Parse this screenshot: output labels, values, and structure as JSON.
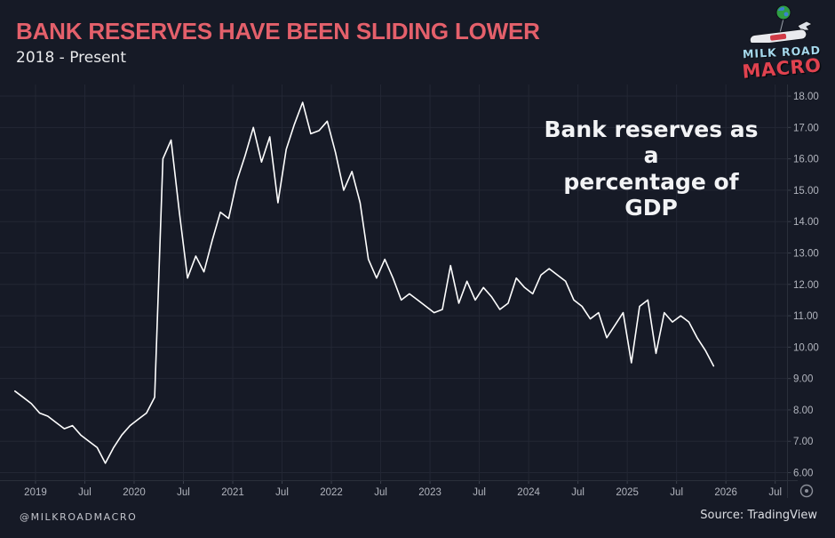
{
  "header": {
    "title": "BANK RESERVES HAVE BEEN SLIDING LOWER",
    "subtitle": "2018 - Present"
  },
  "logo": {
    "line1": "MILK ROAD",
    "line2": "MACRO",
    "colors": {
      "line1": "#a5d8ec",
      "line2": "#e0424f",
      "globe": "#2f9e44",
      "globe_land": "#3b82d0"
    }
  },
  "annotation": {
    "line1": "Bank reserves as a",
    "line2": "percentage of GDP"
  },
  "footer": {
    "handle": "@MILKROADMACRO",
    "source": "Source: TradingView"
  },
  "icons": {
    "bottom_right": "gear-icon (price scale settings)",
    "logo_top": "globe-balloon-icon",
    "logo_side": "bird-icon"
  },
  "colors": {
    "background": "#161a26",
    "grid": "#232734",
    "axis_line": "#2a2f3a",
    "axis_tick": "#3a3f4b",
    "axis_text": "#b2b5be",
    "series_line": "#ffffff",
    "title": "#e4606b",
    "annotation_text": "#f2f3f5"
  },
  "chart_data": {
    "type": "line",
    "title": "Bank reserves as a percentage of GDP",
    "series_name": "Bank reserves as a percentage of GDP",
    "unit": "percent of GDP",
    "grid": true,
    "legend_position": "none",
    "line_color": "#ffffff",
    "xlim": [
      2018.64,
      2026.62
    ],
    "ylim": [
      5.76,
      18.37
    ],
    "y_ticks": [
      "18.00",
      "17.00",
      "16.00",
      "15.00",
      "14.00",
      "13.00",
      "12.00",
      "11.00",
      "10.00",
      "9.00",
      "8.00",
      "7.00",
      "6.00"
    ],
    "x_ticks": [
      {
        "label": "2019",
        "t": 2019.0
      },
      {
        "label": "Jul",
        "t": 2019.5
      },
      {
        "label": "2020",
        "t": 2020.0
      },
      {
        "label": "Jul",
        "t": 2020.5
      },
      {
        "label": "2021",
        "t": 2021.0
      },
      {
        "label": "Jul",
        "t": 2021.5
      },
      {
        "label": "2022",
        "t": 2022.0
      },
      {
        "label": "Jul",
        "t": 2022.5
      },
      {
        "label": "2023",
        "t": 2023.0
      },
      {
        "label": "Jul",
        "t": 2023.5
      },
      {
        "label": "2024",
        "t": 2024.0
      },
      {
        "label": "Jul",
        "t": 2024.5
      },
      {
        "label": "2025",
        "t": 2025.0
      },
      {
        "label": "Jul",
        "t": 2025.5
      },
      {
        "label": "2026",
        "t": 2026.0
      },
      {
        "label": "Jul",
        "t": 2026.5
      }
    ],
    "x": [
      "2018-10",
      "2018-11",
      "2018-12",
      "2019-01",
      "2019-02",
      "2019-03",
      "2019-04",
      "2019-05",
      "2019-06",
      "2019-07",
      "2019-08",
      "2019-09",
      "2019-10",
      "2019-11",
      "2019-12",
      "2020-01",
      "2020-02",
      "2020-03",
      "2020-04",
      "2020-05",
      "2020-06",
      "2020-07",
      "2020-08",
      "2020-09",
      "2020-10",
      "2020-11",
      "2020-12",
      "2021-01",
      "2021-02",
      "2021-03",
      "2021-04",
      "2021-05",
      "2021-06",
      "2021-07",
      "2021-08",
      "2021-09",
      "2021-10",
      "2021-11",
      "2021-12",
      "2022-01",
      "2022-02",
      "2022-03",
      "2022-04",
      "2022-05",
      "2022-06",
      "2022-07",
      "2022-08",
      "2022-09",
      "2022-10",
      "2022-11",
      "2022-12",
      "2023-01",
      "2023-02",
      "2023-03",
      "2023-04",
      "2023-05",
      "2023-06",
      "2023-07",
      "2023-08",
      "2023-09",
      "2023-10",
      "2023-11",
      "2023-12",
      "2024-01",
      "2024-02",
      "2024-03",
      "2024-04",
      "2024-05",
      "2024-06",
      "2024-07",
      "2024-08",
      "2024-09",
      "2024-10",
      "2024-11",
      "2024-12",
      "2025-01",
      "2025-02",
      "2025-03",
      "2025-04",
      "2025-05",
      "2025-06",
      "2025-07",
      "2025-08",
      "2025-09",
      "2025-10",
      "2025-11"
    ],
    "values": [
      8.6,
      8.4,
      8.2,
      7.9,
      7.8,
      7.6,
      7.4,
      7.5,
      7.2,
      7.0,
      6.8,
      6.3,
      6.8,
      7.2,
      7.5,
      7.7,
      7.9,
      8.4,
      16.0,
      16.6,
      14.3,
      12.2,
      12.9,
      12.4,
      13.4,
      14.3,
      14.1,
      15.3,
      16.1,
      17.0,
      15.9,
      16.7,
      14.6,
      16.3,
      17.1,
      17.8,
      16.8,
      16.9,
      17.2,
      16.2,
      15.0,
      15.6,
      14.6,
      12.8,
      12.2,
      12.8,
      12.2,
      11.5,
      11.7,
      11.5,
      11.3,
      11.1,
      11.2,
      12.6,
      11.4,
      12.1,
      11.5,
      11.9,
      11.6,
      11.2,
      11.4,
      12.2,
      11.9,
      11.7,
      12.3,
      12.5,
      12.3,
      12.1,
      11.5,
      11.3,
      10.9,
      11.1,
      10.3,
      10.7,
      11.1,
      9.5,
      11.3,
      11.5,
      9.8,
      11.1,
      10.8,
      11.0,
      10.8,
      10.3,
      9.9,
      9.4
    ]
  }
}
